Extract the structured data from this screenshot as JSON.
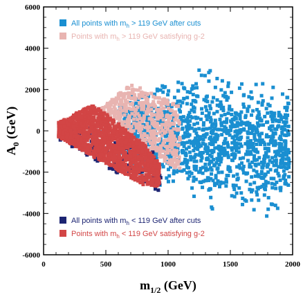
{
  "chart_data": {
    "type": "scatter",
    "xlabel_main": "m",
    "xlabel_sub": "1/2",
    "xlabel_unit": " (GeV)",
    "ylabel_main": "A",
    "ylabel_sub": "0",
    "ylabel_unit": " (GeV)",
    "xlim": [
      0,
      2000
    ],
    "ylim": [
      -6000,
      6000
    ],
    "x_ticks": [
      0,
      500,
      1000,
      1500,
      2000
    ],
    "y_ticks": [
      -6000,
      -4000,
      -2000,
      0,
      2000,
      4000,
      6000
    ],
    "grid": false,
    "legend": {
      "top": [
        {
          "pre": "All points with m",
          "sub": "h",
          "post": " > 119 GeV after cuts",
          "color": "#1a8fd1",
          "text_color": "#1a8fd1"
        },
        {
          "pre": "Points with m",
          "sub": "h",
          "post": " > 119 GeV satisfying g-2",
          "color": "#e8b4b1",
          "text_color": "#e8b4b1"
        }
      ],
      "bottom": [
        {
          "pre": "All points with m",
          "sub": "h",
          "post": " < 119 GeV after cuts",
          "color": "#1c2472",
          "text_color": "#1c2472"
        },
        {
          "pre": "Points with m",
          "sub": "h",
          "post": " < 119 GeV satisfying g-2",
          "color": "#d24545",
          "text_color": "#d24545"
        }
      ]
    },
    "series": [
      {
        "key": "high_after_cuts",
        "color": "#1a8fd1",
        "region": {
          "x_from": 600,
          "x_to": 2000,
          "center_y": -500,
          "spread_y": [
            [
              600,
              2000
            ],
            [
              1200,
              3500
            ],
            [
              2000,
              3000
            ]
          ],
          "spread_y_low": [
            [
              600,
              -2000
            ],
            [
              1200,
              -4200
            ],
            [
              2000,
              -4800
            ]
          ],
          "count": 1400
        }
      },
      {
        "key": "high_g2",
        "color": "#e8b4b1",
        "region": {
          "x_from": 350,
          "x_to": 1100,
          "upper": [
            [
              350,
              500
            ],
            [
              700,
              2300
            ],
            [
              1100,
              1200
            ]
          ],
          "lower": [
            [
              350,
              -200
            ],
            [
              700,
              -400
            ],
            [
              1100,
              -2000
            ]
          ],
          "count": 700
        }
      },
      {
        "key": "low_after_cuts",
        "color": "#1c2472",
        "region": {
          "x_from": 120,
          "x_to": 950,
          "upper": [
            [
              120,
              400
            ],
            [
              500,
              0
            ],
            [
              950,
              -1200
            ]
          ],
          "lower": [
            [
              120,
              -400
            ],
            [
              500,
              -1800
            ],
            [
              950,
              -3000
            ]
          ],
          "count": 160
        }
      },
      {
        "key": "low_g2",
        "color": "#d24545",
        "region": {
          "x_from": 120,
          "x_to": 930,
          "upper": [
            [
              120,
              400
            ],
            [
              400,
              1300
            ],
            [
              800,
              -600
            ],
            [
              930,
              -1600
            ]
          ],
          "lower": [
            [
              120,
              -300
            ],
            [
              500,
              -1600
            ],
            [
              800,
              -2600
            ],
            [
              930,
              -2700
            ]
          ],
          "count": 1300
        }
      }
    ]
  }
}
